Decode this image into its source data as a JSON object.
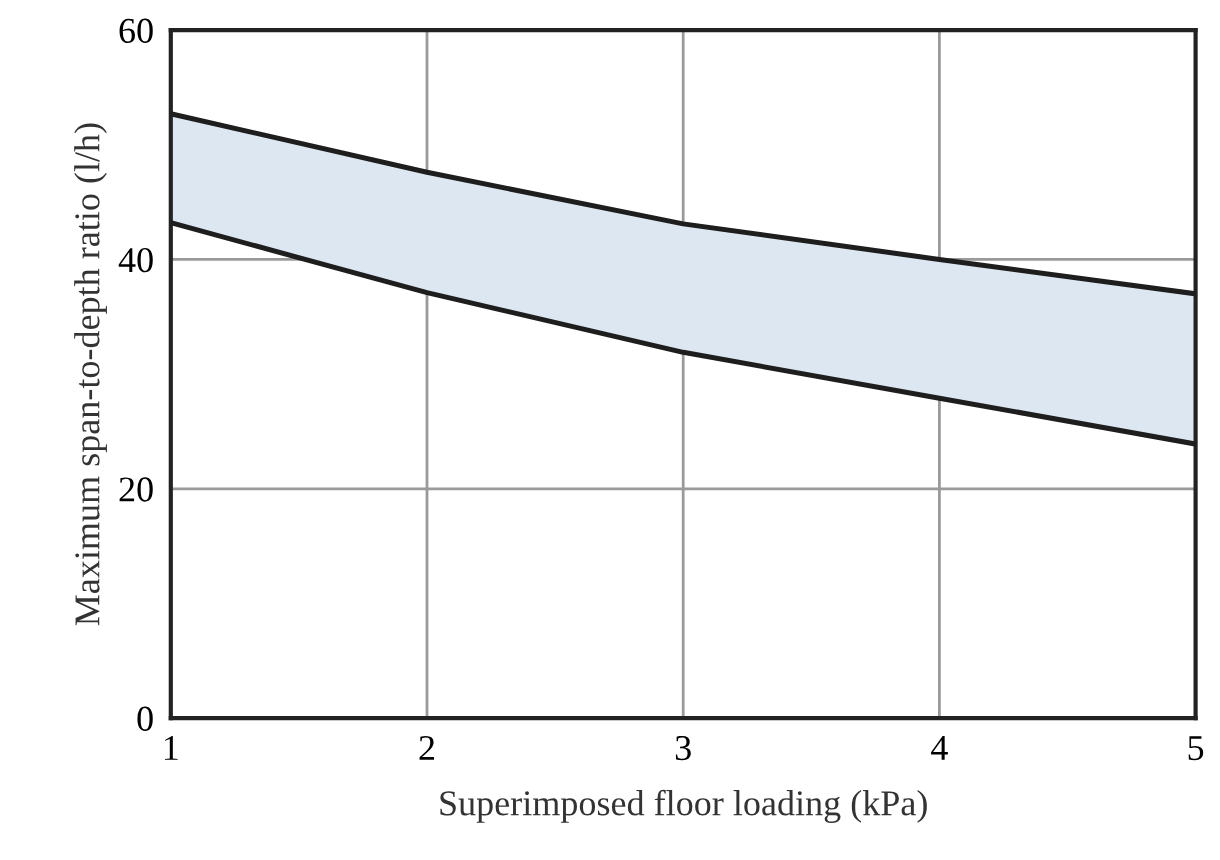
{
  "chart_data": {
    "type": "line",
    "xlabel": "Superimposed floor loading (kPa)",
    "ylabel": "Maximum span-to-depth ratio (l/h)",
    "x": [
      1,
      2,
      3,
      4,
      5
    ],
    "series": [
      {
        "color": "#1e1e1e",
        "values": [
          52.7,
          47.6,
          43.1,
          40.0,
          37.0
        ],
        "lower": [
          43.2,
          37.1,
          31.9,
          27.9,
          23.9
        ],
        "upper": [
          52.7,
          47.6,
          43.1,
          40.0,
          37.0
        ]
      },
      {
        "color": "#1e1e1e",
        "values": [
          43.2,
          37.1,
          31.9,
          27.9,
          23.9
        ]
      }
    ],
    "xlim": [
      1,
      5
    ],
    "ylim": [
      0,
      60
    ],
    "xticks": [
      1,
      2,
      3,
      4,
      5
    ],
    "yticks": [
      0,
      20,
      40,
      60
    ],
    "grid": true,
    "marker": "none",
    "line_style": "solid"
  }
}
